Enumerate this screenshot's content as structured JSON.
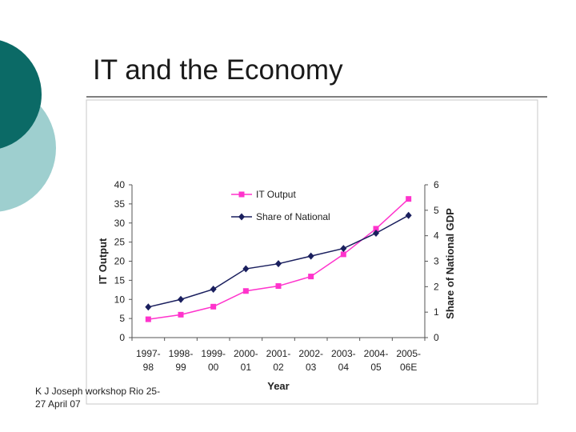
{
  "slide": {
    "title": "IT and the Economy",
    "footer": "K J Joseph workshop Rio 25-27 April 07"
  },
  "colors": {
    "teal_dark": "#0b6a66",
    "teal_light": "#9ecfcf",
    "series_it": "#ff33cc",
    "series_share": "#1a1f5e"
  },
  "chart_data": {
    "type": "line",
    "xlabel": "Year",
    "ylabel": "IT Output",
    "y2label": "Share of National GDP",
    "ylim": [
      0,
      40
    ],
    "y2lim": [
      0,
      6
    ],
    "yticks": [
      0,
      5,
      10,
      15,
      20,
      25,
      30,
      35,
      40
    ],
    "y2ticks": [
      0,
      1,
      2,
      3,
      4,
      5,
      6
    ],
    "categories": [
      [
        "1997-",
        "98"
      ],
      [
        "1998-",
        "99"
      ],
      [
        "1999-",
        "00"
      ],
      [
        "2000-",
        "01"
      ],
      [
        "2001-",
        "02"
      ],
      [
        "2002-",
        "03"
      ],
      [
        "2003-",
        "04"
      ],
      [
        "2004-",
        "05"
      ],
      [
        "2005-",
        "06E"
      ]
    ],
    "series": [
      {
        "name": "IT Output",
        "axis": "left",
        "marker": "square",
        "color": "#ff33cc",
        "values": [
          4.8,
          6.0,
          8.1,
          12.2,
          13.5,
          16.0,
          21.8,
          28.5,
          36.3
        ]
      },
      {
        "name": "Share of National",
        "axis": "right",
        "marker": "diamond",
        "color": "#1a1f5e",
        "values": [
          1.2,
          1.5,
          1.9,
          2.7,
          2.9,
          3.2,
          3.5,
          4.1,
          4.8
        ]
      }
    ],
    "legend_position": "top-right"
  }
}
